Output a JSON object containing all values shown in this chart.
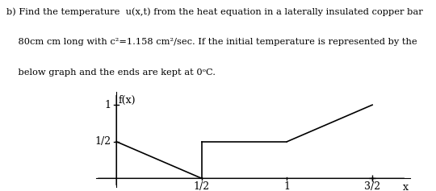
{
  "text_lines": [
    "b) Find the temperature  u(x,t) from the heat equation in a laterally insulated copper bar",
    "    80cm cm long with c²=1.158 cm²/sec. If the initial temperature is represented by the",
    "    below graph and the ends are kept at 0ᵒC."
  ],
  "graph": {
    "segments": [
      {
        "x": [
          0.0,
          0.5
        ],
        "y": [
          0.5,
          0.0
        ]
      },
      {
        "x": [
          0.5,
          0.5
        ],
        "y": [
          0.0,
          0.5
        ]
      },
      {
        "x": [
          0.5,
          1.0
        ],
        "y": [
          0.5,
          0.5
        ]
      },
      {
        "x": [
          1.0,
          1.5
        ],
        "y": [
          0.5,
          1.0
        ]
      }
    ],
    "xticks": [
      0.5,
      1.0,
      1.5
    ],
    "xticklabels": [
      "1/2",
      "1",
      "3/2"
    ],
    "yticks": [
      0.5,
      1.0
    ],
    "yticklabels": [
      "1/2",
      "1"
    ],
    "ylabel": "f(x)",
    "xlabel": "x",
    "xlim": [
      -0.12,
      1.72
    ],
    "ylim": [
      -0.12,
      1.18
    ],
    "line_color": "#000000",
    "font_size": 9,
    "axis_label_font_size": 9
  },
  "background_color": "#ffffff",
  "text_font_size": 8.2,
  "text_color": "#000000"
}
